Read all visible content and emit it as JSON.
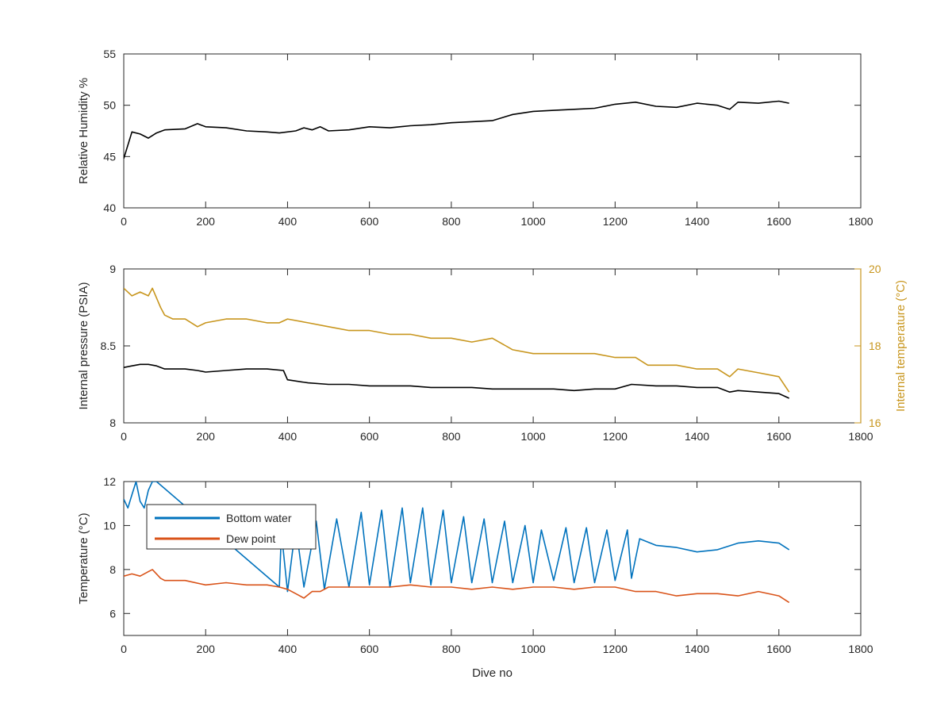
{
  "chart_data": [
    {
      "type": "line",
      "xlabel": "",
      "ylabel": "Relative Humidity %",
      "xlim": [
        0,
        1800
      ],
      "ylim": [
        40,
        55
      ],
      "xticks": [
        "0",
        "200",
        "400",
        "600",
        "800",
        "1000",
        "1200",
        "1400",
        "1600",
        "1800"
      ],
      "yticks": [
        "40",
        "45",
        "50",
        "55"
      ],
      "grid": false,
      "series": [
        {
          "name": "",
          "color": "#000000",
          "x": [
            0,
            20,
            40,
            60,
            80,
            100,
            150,
            180,
            200,
            250,
            300,
            350,
            380,
            420,
            440,
            460,
            480,
            500,
            550,
            600,
            650,
            700,
            750,
            800,
            850,
            900,
            950,
            1000,
            1050,
            1100,
            1150,
            1200,
            1250,
            1300,
            1350,
            1400,
            1450,
            1480,
            1500,
            1550,
            1600,
            1625
          ],
          "y": [
            44.8,
            47.4,
            47.2,
            46.8,
            47.3,
            47.6,
            47.7,
            48.2,
            47.9,
            47.8,
            47.5,
            47.4,
            47.3,
            47.5,
            47.8,
            47.6,
            47.9,
            47.5,
            47.6,
            47.9,
            47.8,
            48.0,
            48.1,
            48.3,
            48.4,
            48.5,
            49.1,
            49.4,
            49.5,
            49.6,
            49.7,
            50.1,
            50.3,
            49.9,
            49.8,
            50.2,
            50.0,
            49.6,
            50.3,
            50.2,
            50.4,
            50.2
          ]
        }
      ]
    },
    {
      "type": "line",
      "xlabel": "",
      "ylabel": "Internal pressure (PSIA)",
      "ylabel_right": "Internal temperature (°C)",
      "xlim": [
        0,
        1800
      ],
      "ylim": [
        8,
        9
      ],
      "ylim_right": [
        16,
        20
      ],
      "xticks": [
        "0",
        "200",
        "400",
        "600",
        "800",
        "1000",
        "1200",
        "1400",
        "1600",
        "1800"
      ],
      "yticks": [
        "8",
        "8.5",
        "9"
      ],
      "yticks_right": [
        "16",
        "18",
        "20"
      ],
      "grid": false,
      "series": [
        {
          "name": "",
          "axis": "right",
          "color": "#C8961E",
          "x": [
            0,
            20,
            40,
            60,
            70,
            90,
            100,
            120,
            150,
            180,
            200,
            250,
            300,
            350,
            380,
            400,
            450,
            500,
            550,
            600,
            650,
            700,
            750,
            800,
            850,
            900,
            950,
            1000,
            1050,
            1100,
            1150,
            1200,
            1250,
            1280,
            1300,
            1350,
            1400,
            1450,
            1480,
            1500,
            1550,
            1600,
            1625
          ],
          "y": [
            19.5,
            19.3,
            19.4,
            19.3,
            19.5,
            19.0,
            18.8,
            18.7,
            18.7,
            18.5,
            18.6,
            18.7,
            18.7,
            18.6,
            18.6,
            18.7,
            18.6,
            18.5,
            18.4,
            18.4,
            18.3,
            18.3,
            18.2,
            18.2,
            18.1,
            18.2,
            17.9,
            17.8,
            17.8,
            17.8,
            17.8,
            17.7,
            17.7,
            17.5,
            17.5,
            17.5,
            17.4,
            17.4,
            17.2,
            17.4,
            17.3,
            17.2,
            16.8
          ]
        },
        {
          "name": "",
          "axis": "left",
          "color": "#000000",
          "x": [
            0,
            20,
            40,
            60,
            80,
            100,
            120,
            150,
            180,
            200,
            250,
            300,
            350,
            390,
            400,
            450,
            500,
            550,
            600,
            650,
            700,
            750,
            800,
            850,
            900,
            950,
            1000,
            1050,
            1100,
            1150,
            1200,
            1240,
            1300,
            1350,
            1400,
            1450,
            1480,
            1500,
            1550,
            1600,
            1625
          ],
          "y": [
            8.36,
            8.37,
            8.38,
            8.38,
            8.37,
            8.35,
            8.35,
            8.35,
            8.34,
            8.33,
            8.34,
            8.35,
            8.35,
            8.34,
            8.28,
            8.26,
            8.25,
            8.25,
            8.24,
            8.24,
            8.24,
            8.23,
            8.23,
            8.23,
            8.22,
            8.22,
            8.22,
            8.22,
            8.21,
            8.22,
            8.22,
            8.25,
            8.24,
            8.24,
            8.23,
            8.23,
            8.2,
            8.21,
            8.2,
            8.19,
            8.16
          ]
        }
      ]
    },
    {
      "type": "line",
      "xlabel": "Dive no",
      "ylabel": "Temperature (°C)",
      "xlim": [
        0,
        1800
      ],
      "ylim": [
        5,
        12
      ],
      "xticks": [
        "0",
        "200",
        "400",
        "600",
        "800",
        "1000",
        "1200",
        "1400",
        "1600",
        "1800"
      ],
      "yticks": [
        "6",
        "8",
        "10",
        "12"
      ],
      "grid": false,
      "legend": "top-left",
      "series": [
        {
          "name": "Bottom water",
          "color": "#0072BD",
          "x": [
            0,
            10,
            20,
            30,
            40,
            50,
            60,
            70,
            80,
            380,
            385,
            400,
            420,
            440,
            470,
            490,
            520,
            550,
            580,
            600,
            630,
            650,
            680,
            700,
            730,
            750,
            780,
            800,
            830,
            850,
            880,
            900,
            930,
            950,
            980,
            1000,
            1020,
            1050,
            1080,
            1100,
            1130,
            1150,
            1180,
            1200,
            1230,
            1240,
            1260,
            1300,
            1350,
            1400,
            1450,
            1500,
            1550,
            1600,
            1625
          ],
          "y": [
            11.2,
            10.8,
            11.4,
            12,
            11.1,
            10.8,
            11.6,
            12,
            12,
            7.2,
            9.7,
            7.0,
            10.0,
            7.2,
            10.2,
            7.1,
            10.3,
            7.2,
            10.6,
            7.3,
            10.7,
            7.2,
            10.8,
            7.4,
            10.8,
            7.3,
            10.7,
            7.4,
            10.4,
            7.4,
            10.3,
            7.4,
            10.2,
            7.4,
            10.0,
            7.4,
            9.8,
            7.5,
            9.9,
            7.4,
            9.9,
            7.4,
            9.8,
            7.5,
            9.8,
            7.6,
            9.4,
            9.1,
            9.0,
            8.8,
            8.9,
            9.2,
            9.3,
            9.2,
            8.9
          ]
        },
        {
          "name": "Dew point",
          "color": "#D95319",
          "x": [
            0,
            20,
            40,
            60,
            70,
            90,
            100,
            150,
            200,
            250,
            300,
            350,
            380,
            400,
            420,
            440,
            460,
            480,
            500,
            550,
            600,
            650,
            700,
            750,
            800,
            850,
            900,
            950,
            1000,
            1050,
            1100,
            1150,
            1200,
            1250,
            1300,
            1350,
            1400,
            1450,
            1500,
            1550,
            1600,
            1625
          ],
          "y": [
            7.7,
            7.8,
            7.7,
            7.9,
            8.0,
            7.6,
            7.5,
            7.5,
            7.3,
            7.4,
            7.3,
            7.3,
            7.2,
            7.1,
            6.9,
            6.7,
            7.0,
            7.0,
            7.2,
            7.2,
            7.2,
            7.2,
            7.3,
            7.2,
            7.2,
            7.1,
            7.2,
            7.1,
            7.2,
            7.2,
            7.1,
            7.2,
            7.2,
            7.0,
            7.0,
            6.8,
            6.9,
            6.9,
            6.8,
            7.0,
            6.8,
            6.5
          ]
        }
      ]
    }
  ]
}
